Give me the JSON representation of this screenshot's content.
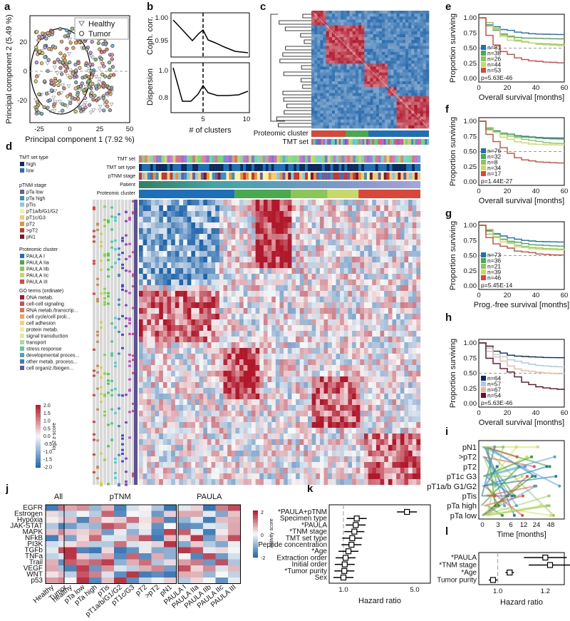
{
  "panel_letters": [
    "a",
    "b",
    "c",
    "d",
    "e",
    "f",
    "g",
    "h",
    "i",
    "j",
    "k",
    "l"
  ],
  "panel_a": {
    "legend": [
      "Healthy",
      "Tumor"
    ],
    "xlabel": "Principal component 1 (7.92 %)",
    "ylabel": "Principal component 2 (5.49 %)",
    "xticks": [
      "-25",
      "0",
      "25",
      "50"
    ],
    "yticks": [
      "20",
      "0",
      "-20"
    ]
  },
  "panel_b": {
    "ylabel_top": "Coph. corr.",
    "ylabel_bottom": "Dispersion",
    "xlabel": "# of clusters",
    "yticks_top": [
      "1.00",
      "0.95"
    ],
    "yticks_bottom": [
      "1.0",
      "0.8"
    ],
    "xticks": [
      "5",
      "10"
    ]
  },
  "panel_c": {
    "row_labels": [
      "Proteomic cluster",
      "TMT set"
    ]
  },
  "panel_d": {
    "track_labels": [
      "TMT set",
      "TMT set type",
      "pTNM stage",
      "Patient",
      "Proteomic cluster"
    ],
    "legend_tmt_title": "TMT set type",
    "legend_tmt": [
      "high",
      "low"
    ],
    "legend_ptnm_title": "pTNM stage",
    "legend_ptnm": [
      "pTa low",
      "pTa high",
      "pTis",
      "pT1a/b/G1/G2",
      "pT1c/G3",
      "pT2",
      ">pT2",
      "pN1"
    ],
    "legend_cluster_title": "Proteomic cluster",
    "legend_cluster": [
      "PAULA I",
      "PAULA IIa",
      "PAULA IIb",
      "PAULA IIc",
      "PAULA III"
    ],
    "legend_go_title": "GO terms (ordinate)",
    "legend_go": [
      "DNA metab.",
      "cell-cell signaling",
      "RNA metab./transcrip...",
      "cell cycle/cell proli...",
      "cell adhesion",
      "protein metab.",
      "signal transduction",
      "transport",
      "stress response",
      "developmental proces...",
      "other metab. process...",
      "cell organiz./biogen..."
    ],
    "colorbar_label": "log2 z-score",
    "colorbar_ticks": [
      "2.0",
      "1.5",
      "1.0",
      "0.5",
      "0.0",
      "-0.5",
      "-1.0",
      "-1.5",
      "-2.0"
    ]
  },
  "km_common": {
    "ylabel": "Proportion surviving",
    "yticks": [
      "1.00",
      "0.75",
      "0.50",
      "0.25",
      "0.00"
    ],
    "xticks": [
      "0",
      "20",
      "40",
      "60"
    ]
  },
  "panel_e": {
    "xlabel": "Overall survival [months]",
    "n": [
      "n=81",
      "n=38",
      "n=26",
      "n=44",
      "n=53"
    ],
    "p": "p=5.63E-46"
  },
  "panel_f": {
    "xlabel": "Overall survival [months]",
    "n": [
      "n=76",
      "n=32",
      "n=8",
      "n=34",
      "n=17"
    ],
    "p": "p=1.44E-27"
  },
  "panel_g": {
    "xlabel": "Prog.-free survival [months]",
    "n": [
      "n=73",
      "n=36",
      "n=21",
      "n=39",
      "n=46"
    ],
    "p": "p=5.45E-14"
  },
  "panel_h": {
    "xlabel": "Overall survival [months]",
    "n": [
      "n=64",
      "n=57",
      "n=67",
      "n=54"
    ],
    "p": "p=5.63E-46"
  },
  "panel_i": {
    "ylabels": [
      "pN1",
      ">pT2",
      "pT2",
      "pT1c G3",
      "pT1a/b G1/G2",
      "pTis",
      "pTa high",
      "pTa low"
    ],
    "xticks": [
      "0",
      "3",
      "6",
      "12",
      "24",
      "48"
    ],
    "xlabel": "Time [months]"
  },
  "panel_j": {
    "groups": [
      "All",
      "pTNM",
      "PAULA"
    ],
    "pathways": [
      "EGFR",
      "Estrogen",
      "Hypoxia",
      "JAK-STAT",
      "MAPK",
      "NFkB",
      "PI3K",
      "TGFb",
      "TNFa",
      "Trail",
      "VEGF",
      "WNT",
      "p53"
    ],
    "cols_all": [
      "Healthy",
      "Tumor"
    ],
    "cols_ptnm": [
      "healthy",
      "pTa low",
      "pTa high",
      "pTis",
      "pT1a/b/G1/G2",
      "pT1c/G3",
      "pT2",
      ">pT2",
      "pN1"
    ],
    "cols_paula": [
      "PAULA I",
      "PAULA IIa",
      "PAULA IIb",
      "PAULA IIc",
      "PAULA III"
    ],
    "colorbar_label": "Activity score",
    "colorbar_ticks": [
      "2",
      "0",
      "-2"
    ]
  },
  "panel_k": {
    "labels": [
      "*PAULA+pTNM",
      "Specimen type",
      "*PAULA",
      "*TNM stage",
      "TMT set type",
      "Peptide concentration",
      "*Age",
      "Extraction order",
      "Initial order",
      "*Tumor purity",
      "Sex"
    ],
    "hr": [
      4.2,
      1.35,
      1.32,
      1.28,
      1.22,
      1.2,
      1.12,
      1.05,
      1.03,
      1.02,
      1.0
    ],
    "xticks": [
      "1.0",
      "5.0"
    ],
    "xlabel": "Hazard ratio"
  },
  "panel_l": {
    "labels": [
      "*PAULA",
      "*TNM stage",
      "*Age",
      "Tumor purity"
    ],
    "hr": [
      1.2,
      1.22,
      1.05,
      0.98
    ],
    "xticks": [
      "1.0",
      "1.2"
    ],
    "xlabel": "Hazard ratio"
  },
  "colors": {
    "paula": [
      "#1f6fb8",
      "#4aa84f",
      "#8bc65b",
      "#c7d96a",
      "#d9473a"
    ],
    "h_groups": [
      "#0d2b5c",
      "#a9c9e6",
      "#f2b39a",
      "#6b0f23"
    ],
    "heat_pos": "#b2182b",
    "heat_neg": "#2166ac"
  }
}
